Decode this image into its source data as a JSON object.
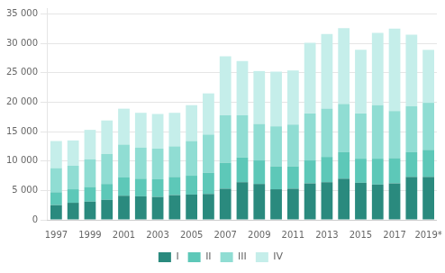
{
  "chart_data": {
    "type": "bar",
    "categories": [
      "1997",
      null,
      "1999",
      null,
      "2001",
      null,
      "2003",
      null,
      "2005",
      null,
      "2007",
      null,
      "2009",
      null,
      "2011",
      null,
      "2013",
      null,
      "2015",
      null,
      "2017",
      null,
      "2019*"
    ],
    "series": [
      {
        "name": "I",
        "color": "#2a8a7e",
        "values": [
          2500,
          2900,
          3100,
          3400,
          4100,
          4000,
          3900,
          4200,
          4300,
          4400,
          5300,
          6400,
          6100,
          5200,
          5300,
          6200,
          6400,
          7000,
          6300,
          6000,
          6200,
          7300,
          7300
        ]
      },
      {
        "name": "II",
        "color": "#5dc8b8",
        "values": [
          2200,
          2300,
          2500,
          2700,
          3100,
          3000,
          3000,
          3100,
          3200,
          3600,
          4400,
          4200,
          4000,
          3900,
          3800,
          3900,
          4300,
          4500,
          4100,
          4400,
          4300,
          4200,
          4600
        ]
      },
      {
        "name": "III",
        "color": "#90ddd3",
        "values": [
          4100,
          4000,
          4700,
          5100,
          5600,
          5300,
          5200,
          5200,
          5900,
          6500,
          8100,
          7200,
          6200,
          6800,
          7100,
          8000,
          8200,
          8200,
          7700,
          9100,
          8000,
          7800,
          8000
        ]
      },
      {
        "name": "IV",
        "color": "#c5eeea",
        "values": [
          4600,
          4300,
          5000,
          5700,
          6100,
          5900,
          5900,
          5700,
          6100,
          7000,
          10000,
          9200,
          9000,
          9300,
          9200,
          12000,
          12700,
          12900,
          10800,
          12300,
          14000,
          12200,
          9000
        ]
      }
    ],
    "ylim": [
      0,
      36000
    ],
    "yticks": [
      0,
      {
        "value": 5000,
        "label": "5 000"
      },
      {
        "value": 10000,
        "label": "10 000"
      },
      {
        "value": 15000,
        "label": "15 000"
      },
      {
        "value": 20000,
        "label": "20 000"
      },
      {
        "value": 25000,
        "label": "25 000"
      },
      {
        "value": 30000,
        "label": "30 000"
      },
      {
        "value": 35000,
        "label": "35 000"
      }
    ],
    "stacked": true,
    "grid": "y",
    "legend": "bottom"
  }
}
